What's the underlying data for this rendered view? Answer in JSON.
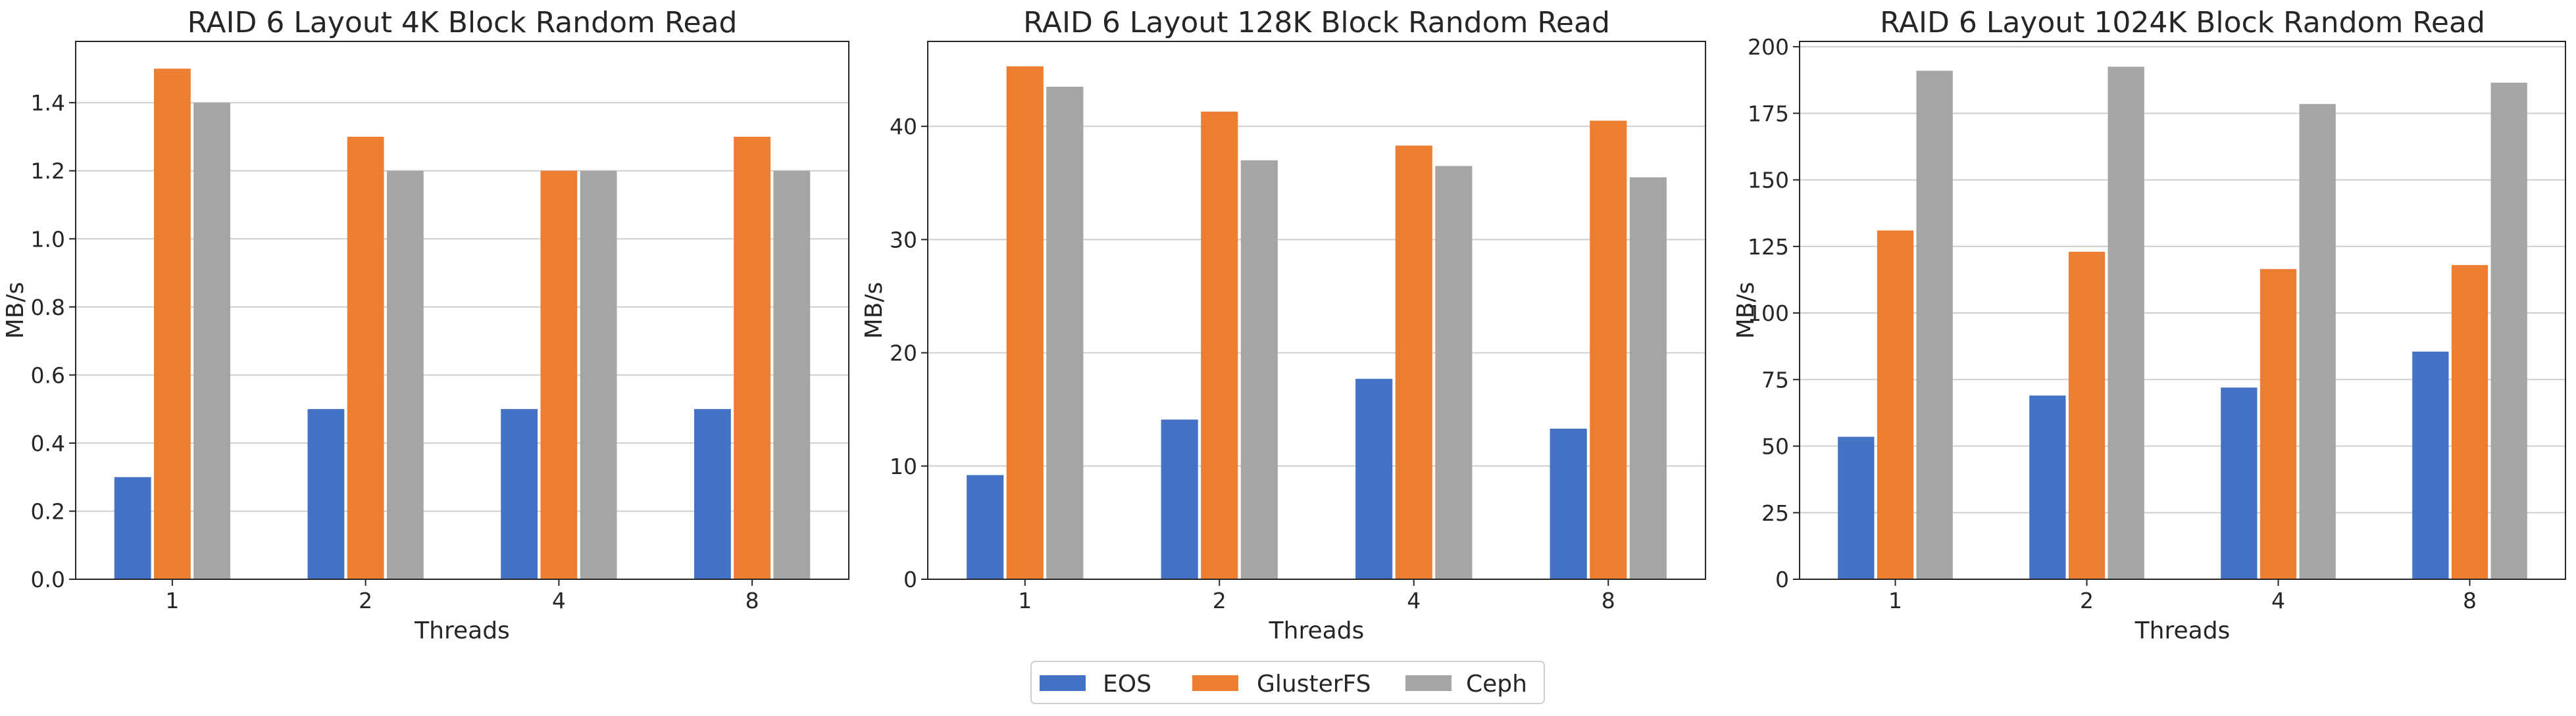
{
  "colors": {
    "EOS": "#4472c4",
    "GlusterFS": "#ed7d31",
    "Ceph": "#a5a5a5"
  },
  "legend": {
    "placement": "bottom-center",
    "entries": [
      "EOS",
      "GlusterFS",
      "Ceph"
    ]
  },
  "chart_data": [
    {
      "type": "bar",
      "title": "RAID 6 Layout 4K Block Random Read",
      "xlabel": "Threads",
      "ylabel": "MB/s",
      "categories": [
        "1",
        "2",
        "4",
        "8"
      ],
      "ylim": [
        0,
        1.58
      ],
      "yticks": [
        0.0,
        0.2,
        0.4,
        0.6,
        0.8,
        1.0,
        1.2,
        1.4
      ],
      "ytick_labels": [
        "0.0",
        "0.2",
        "0.4",
        "0.6",
        "0.8",
        "1.0",
        "1.2",
        "1.4"
      ],
      "grid": "y",
      "series": [
        {
          "name": "EOS",
          "values": [
            0.3,
            0.5,
            0.5,
            0.5
          ]
        },
        {
          "name": "GlusterFS",
          "values": [
            1.5,
            1.3,
            1.2,
            1.3
          ]
        },
        {
          "name": "Ceph",
          "values": [
            1.4,
            1.2,
            1.2,
            1.2
          ]
        }
      ]
    },
    {
      "type": "bar",
      "title": "RAID 6 Layout 128K Block Random Read",
      "xlabel": "Threads",
      "ylabel": "MB/s",
      "categories": [
        "1",
        "2",
        "4",
        "8"
      ],
      "ylim": [
        0,
        47.5
      ],
      "yticks": [
        0,
        10,
        20,
        30,
        40
      ],
      "ytick_labels": [
        "0",
        "10",
        "20",
        "30",
        "40"
      ],
      "grid": "y",
      "series": [
        {
          "name": "EOS",
          "values": [
            9.2,
            14.1,
            17.7,
            13.3
          ]
        },
        {
          "name": "GlusterFS",
          "values": [
            45.3,
            41.3,
            38.3,
            40.5
          ]
        },
        {
          "name": "Ceph",
          "values": [
            43.5,
            37.0,
            36.5,
            35.5
          ]
        }
      ]
    },
    {
      "type": "bar",
      "title": "RAID 6 Layout 1024K Block Random Read",
      "xlabel": "Threads",
      "ylabel": "MB/s",
      "categories": [
        "1",
        "2",
        "4",
        "8"
      ],
      "ylim": [
        0,
        202
      ],
      "yticks": [
        0,
        25,
        50,
        75,
        100,
        125,
        150,
        175,
        200
      ],
      "ytick_labels": [
        "0",
        "25",
        "50",
        "75",
        "100",
        "125",
        "150",
        "175",
        "200"
      ],
      "grid": "y",
      "series": [
        {
          "name": "EOS",
          "values": [
            53.5,
            69.0,
            72.0,
            85.5
          ]
        },
        {
          "name": "GlusterFS",
          "values": [
            131.0,
            123.0,
            116.5,
            118.0
          ]
        },
        {
          "name": "Ceph",
          "values": [
            191.0,
            192.5,
            178.5,
            186.5
          ]
        }
      ]
    }
  ]
}
